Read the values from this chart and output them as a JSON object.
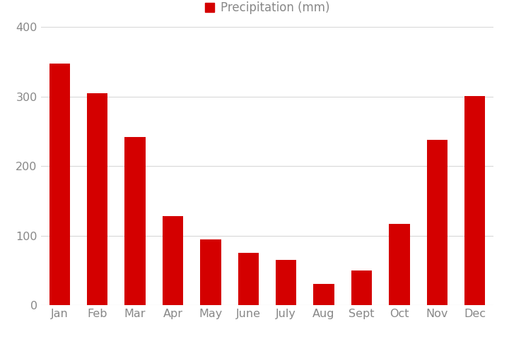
{
  "months": [
    "Jan",
    "Feb",
    "Mar",
    "Apr",
    "May",
    "June",
    "July",
    "Aug",
    "Sept",
    "Oct",
    "Nov",
    "Dec"
  ],
  "values": [
    348,
    305,
    242,
    128,
    95,
    75,
    65,
    30,
    50,
    117,
    238,
    301
  ],
  "bar_color": "#d40000",
  "legend_label": "Precipitation (mm)",
  "legend_marker_color": "#d40000",
  "ylim": [
    0,
    400
  ],
  "yticks": [
    0,
    100,
    200,
    300,
    400
  ],
  "grid_color": "#d8d8d8",
  "background_color": "#ffffff",
  "tick_label_color": "#888888",
  "bar_width": 0.55,
  "legend_fontsize": 12,
  "tick_fontsize": 11.5
}
